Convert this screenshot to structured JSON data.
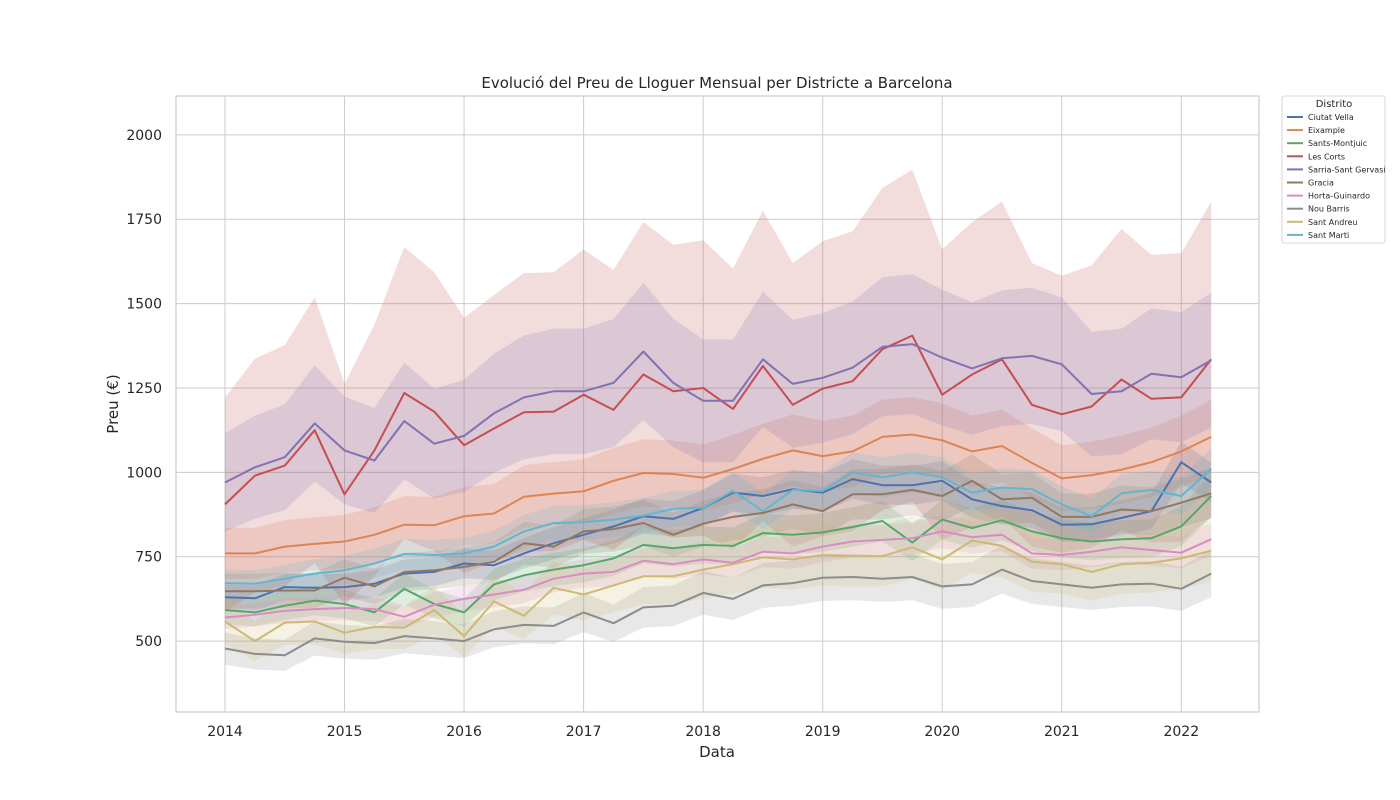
{
  "chart_data": {
    "type": "line",
    "title": "Evolució del Preu de Lloguer Mensual per Districte a Barcelona",
    "xlabel": "Data",
    "ylabel": "Preu (€)",
    "x_ticks": [
      2014,
      2015,
      2016,
      2017,
      2018,
      2019,
      2020,
      2021,
      2022
    ],
    "y_ticks": [
      500,
      750,
      1000,
      1250,
      1500,
      1750,
      2000
    ],
    "xlim": [
      2013.59,
      2022.65
    ],
    "ylim": [
      290,
      2115
    ],
    "grid": true,
    "legend": {
      "title": "Distrito",
      "placement": "outside-top-right"
    },
    "x": [
      2014.0,
      2014.25,
      2014.5,
      2014.75,
      2015.0,
      2015.25,
      2015.5,
      2015.75,
      2016.0,
      2016.25,
      2016.5,
      2016.75,
      2017.0,
      2017.25,
      2017.5,
      2017.75,
      2018.0,
      2018.25,
      2018.5,
      2018.75,
      2019.0,
      2019.25,
      2019.5,
      2019.75,
      2020.0,
      2020.25,
      2020.5,
      2020.75,
      2021.0,
      2021.25,
      2021.5,
      2021.75,
      2022.0,
      2022.25
    ],
    "series": [
      {
        "name": "Ciutat Vella",
        "color": "#4c72b0",
        "band": 0.06,
        "values": [
          630,
          627,
          660,
          658,
          660,
          670,
          700,
          705,
          730,
          725,
          760,
          790,
          815,
          840,
          870,
          862,
          895,
          940,
          930,
          950,
          940,
          980,
          962,
          962,
          975,
          920,
          900,
          888,
          845,
          846,
          865,
          885,
          1030,
          970
        ]
      },
      {
        "name": "Eixample",
        "color": "#dd8452",
        "band": 0.1,
        "values": [
          760,
          760,
          780,
          788,
          795,
          815,
          845,
          843,
          870,
          878,
          928,
          937,
          944,
          975,
          998,
          995,
          984,
          1010,
          1040,
          1065,
          1048,
          1062,
          1105,
          1112,
          1095,
          1062,
          1078,
          1028,
          982,
          992,
          1008,
          1030,
          1062,
          1105
        ]
      },
      {
        "name": "Sants-Montjuic",
        "color": "#55a868",
        "band": 0.07,
        "values": [
          592,
          585,
          605,
          620,
          610,
          585,
          655,
          610,
          585,
          668,
          695,
          712,
          725,
          745,
          785,
          775,
          785,
          782,
          820,
          815,
          822,
          838,
          856,
          792,
          860,
          835,
          858,
          825,
          805,
          795,
          802,
          805,
          840,
          930
        ]
      },
      {
        "name": "Les Corts",
        "color": "#c44e52",
        "band": 0.35,
        "values": [
          905,
          990,
          1020,
          1125,
          935,
          1065,
          1235,
          1180,
          1080,
          1130,
          1178,
          1180,
          1230,
          1185,
          1290,
          1240,
          1250,
          1188,
          1315,
          1200,
          1248,
          1270,
          1365,
          1405,
          1230,
          1290,
          1335,
          1200,
          1172,
          1195,
          1275,
          1218,
          1222,
          1335
        ]
      },
      {
        "name": "Sarria-Sant Gervasi",
        "color": "#8172b3",
        "band": 0.15,
        "values": [
          970,
          1015,
          1045,
          1145,
          1065,
          1035,
          1152,
          1085,
          1108,
          1175,
          1222,
          1240,
          1240,
          1265,
          1358,
          1265,
          1212,
          1212,
          1335,
          1262,
          1280,
          1310,
          1372,
          1380,
          1340,
          1308,
          1338,
          1345,
          1320,
          1232,
          1240,
          1292,
          1282,
          1332
        ]
      },
      {
        "name": "Gracia",
        "color": "#937860",
        "band": 0.08,
        "values": [
          648,
          648,
          650,
          650,
          688,
          662,
          705,
          710,
          720,
          735,
          790,
          780,
          825,
          832,
          850,
          815,
          848,
          868,
          880,
          905,
          885,
          935,
          935,
          948,
          930,
          975,
          920,
          925,
          868,
          868,
          890,
          885,
          910,
          938
        ]
      },
      {
        "name": "Horta-Guinardo",
        "color": "#da8bc3",
        "band": 0.06,
        "values": [
          570,
          578,
          590,
          595,
          598,
          595,
          572,
          608,
          625,
          638,
          652,
          685,
          700,
          705,
          738,
          728,
          742,
          732,
          765,
          760,
          780,
          795,
          800,
          805,
          825,
          808,
          815,
          760,
          755,
          765,
          778,
          770,
          762,
          802
        ]
      },
      {
        "name": "Nou Barris",
        "color": "#8c8c8c",
        "band": 0.1,
        "values": [
          478,
          462,
          458,
          508,
          498,
          494,
          515,
          508,
          500,
          535,
          548,
          545,
          585,
          553,
          600,
          605,
          643,
          625,
          665,
          672,
          688,
          690,
          685,
          690,
          662,
          668,
          712,
          678,
          668,
          658,
          668,
          670,
          655,
          700
        ]
      },
      {
        "name": "Sant Andreu",
        "color": "#ccb974",
        "band": 0.12,
        "values": [
          558,
          500,
          555,
          558,
          525,
          542,
          540,
          592,
          515,
          618,
          575,
          658,
          638,
          665,
          692,
          692,
          712,
          728,
          748,
          742,
          755,
          752,
          752,
          778,
          742,
          798,
          782,
          735,
          728,
          705,
          728,
          732,
          745,
          768
        ]
      },
      {
        "name": "Sant Marti",
        "color": "#64b5cd",
        "band": 0.06,
        "values": [
          672,
          670,
          685,
          700,
          710,
          730,
          758,
          755,
          760,
          780,
          825,
          850,
          852,
          860,
          872,
          892,
          895,
          945,
          885,
          948,
          945,
          1000,
          985,
          1000,
          985,
          940,
          955,
          950,
          905,
          870,
          938,
          948,
          930,
          1010
        ]
      }
    ]
  }
}
